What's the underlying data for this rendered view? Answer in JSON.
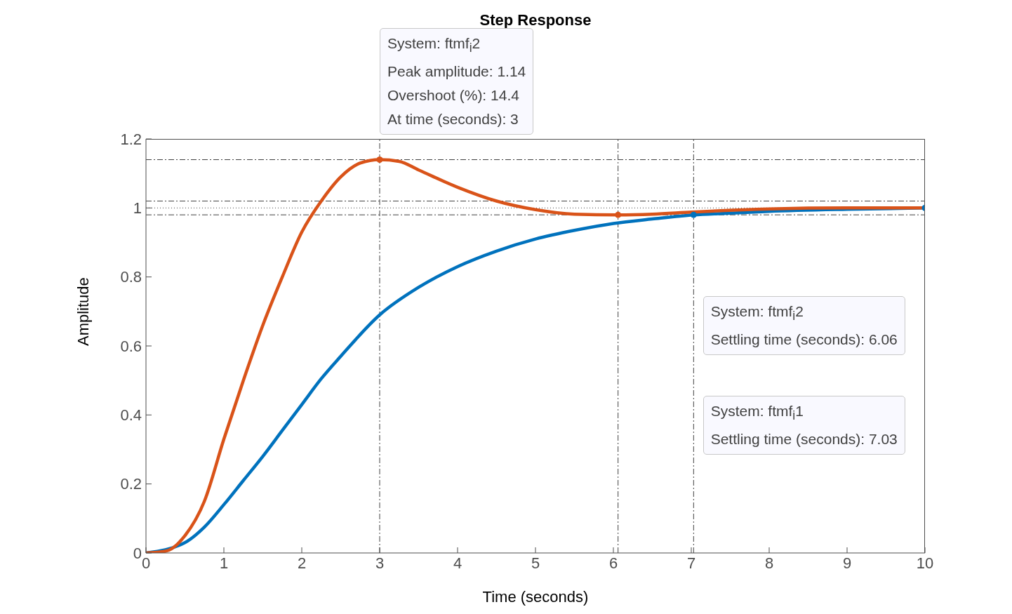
{
  "chart_data": {
    "type": "line",
    "title": "Step Response",
    "xlabel": "Time (seconds)",
    "ylabel": "Amplitude",
    "xlim": [
      0,
      10
    ],
    "xticks": [
      0,
      1,
      2,
      3,
      4,
      5,
      6,
      7,
      8,
      9,
      10
    ],
    "ylim": [
      0,
      1.2
    ],
    "yticks": [
      0,
      0.2,
      0.4,
      0.6,
      0.8,
      1,
      1.2
    ],
    "grid": false,
    "line_style": "solid",
    "series": [
      {
        "color": "#0072bd",
        "x": [
          0,
          0.5,
          0.75,
          1,
          1.25,
          1.5,
          1.75,
          2,
          2.25,
          2.5,
          3,
          3.5,
          4,
          4.5,
          5,
          5.5,
          6,
          6.5,
          7.03,
          7.5,
          8,
          9,
          10
        ],
        "values": [
          0,
          0.03,
          0.075,
          0.14,
          0.21,
          0.28,
          0.355,
          0.43,
          0.505,
          0.57,
          0.69,
          0.77,
          0.83,
          0.875,
          0.91,
          0.935,
          0.955,
          0.968,
          0.98,
          0.985,
          0.99,
          0.996,
          1
        ]
      },
      {
        "color": "#d95319",
        "x": [
          0,
          0.25,
          0.5,
          0.75,
          1,
          1.25,
          1.5,
          1.75,
          2,
          2.25,
          2.5,
          2.75,
          3,
          3.25,
          3.5,
          4,
          4.5,
          5,
          5.5,
          6.06,
          6.5,
          7,
          8,
          9,
          10
        ],
        "values": [
          0,
          0.005,
          0.05,
          0.15,
          0.33,
          0.5,
          0.66,
          0.8,
          0.93,
          1.02,
          1.09,
          1.13,
          1.14,
          1.135,
          1.11,
          1.06,
          1.02,
          0.995,
          0.982,
          0.98,
          0.982,
          0.988,
          0.997,
          1,
          1
        ]
      },
      {
        "type": "scatter",
        "color": "#d95319",
        "x": [
          3,
          6.06
        ],
        "values": [
          1.14,
          0.98
        ]
      },
      {
        "type": "scatter",
        "color": "#0072bd",
        "x": [
          7.03,
          10
        ],
        "values": [
          0.98,
          1
        ]
      }
    ],
    "ref_lines": [
      {
        "axis": "y",
        "value": 1.14,
        "color": "#404040",
        "line_style": "dashdot"
      },
      {
        "axis": "y",
        "value": 1.02,
        "color": "#404040",
        "line_style": "dashdot"
      },
      {
        "axis": "y",
        "value": 0.98,
        "color": "#404040",
        "line_style": "dashdot"
      },
      {
        "axis": "y",
        "value": 1,
        "color": "#404040",
        "line_style": "dotted"
      },
      {
        "axis": "x",
        "value": 3,
        "color": "#404040",
        "line_style": "dashdot"
      },
      {
        "axis": "x",
        "value": 6.06,
        "color": "#404040",
        "line_style": "dashdot"
      },
      {
        "axis": "x",
        "value": 7.03,
        "color": "#404040",
        "line_style": "dashdot"
      }
    ],
    "annotations": [
      "System: ftmf$_{i}$2\nPeak amplitude: 1.14\nOvershoot (%): 14.4\nAt time (seconds): 3",
      "System: ftmf$_{i}$2\nSettling time (seconds): 6.06",
      "System: ftmf$_{i}$1\nSettling time (seconds): 7.03"
    ]
  }
}
